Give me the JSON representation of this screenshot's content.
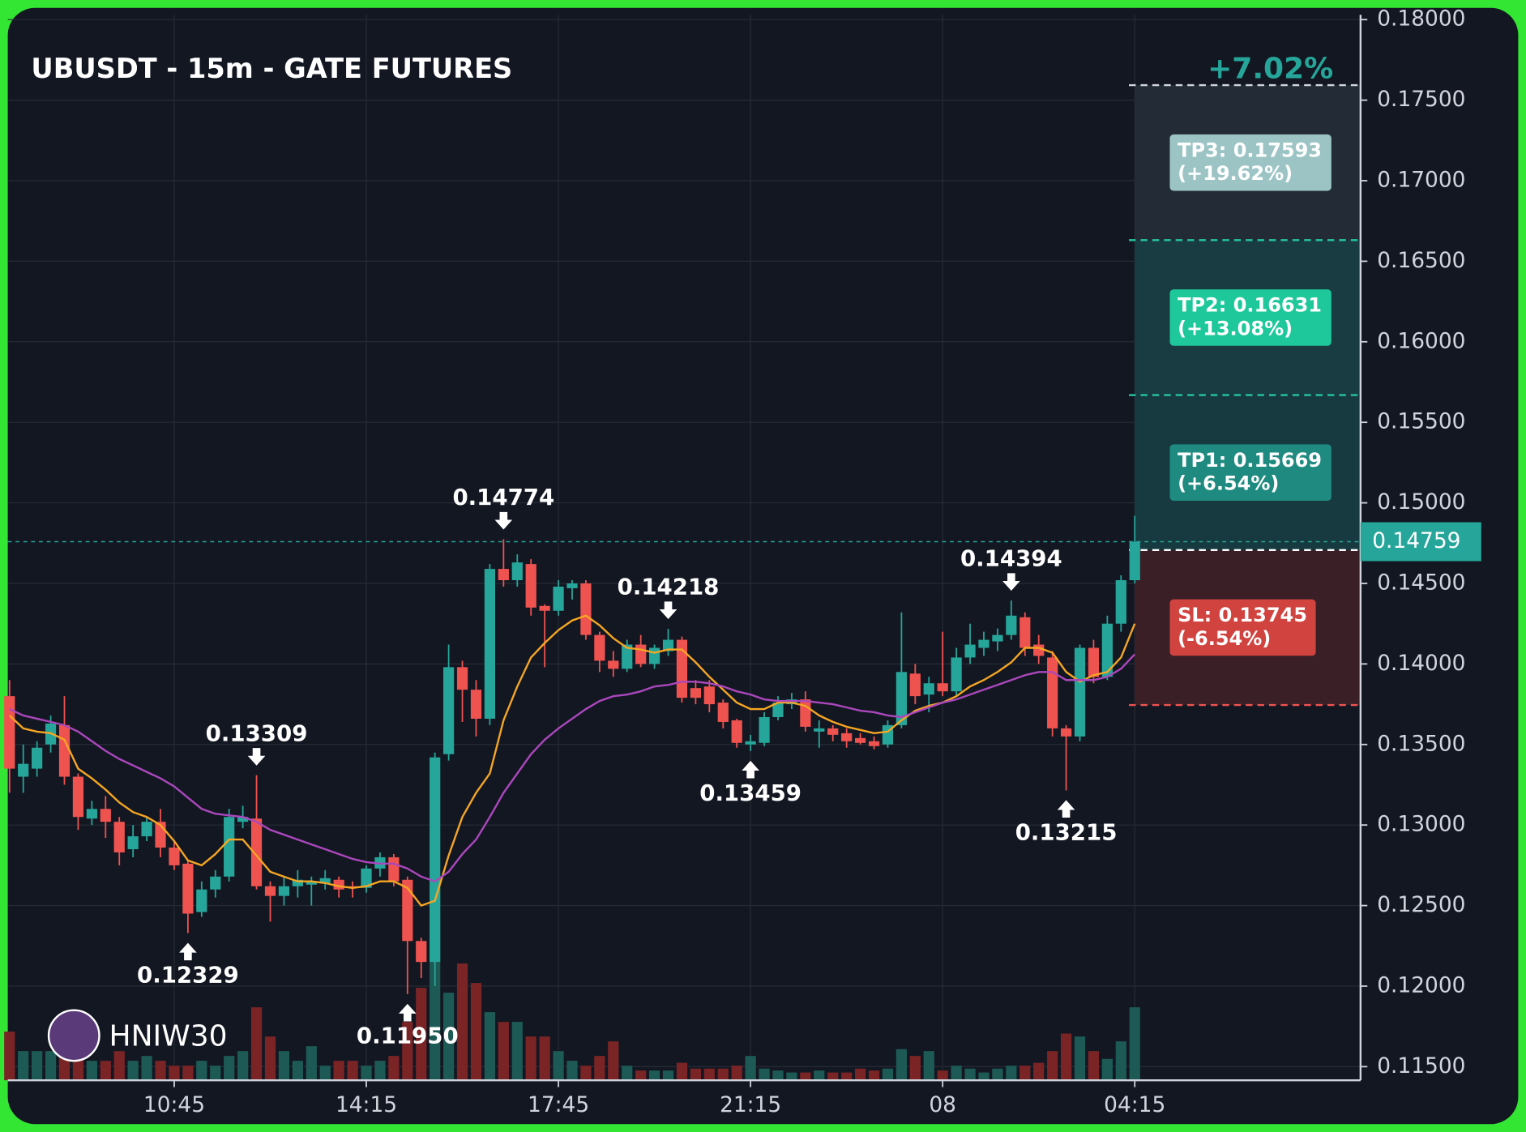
{
  "chart_data": {
    "type": "candlestick",
    "title": "UBUSDT - 15m - GATE FUTURES",
    "watermark": "HNIW30",
    "pnl": "+7.02%",
    "up_color": "#26a69a",
    "down_color": "#ef5350",
    "grid": true,
    "categories": [
      null,
      null,
      null,
      null,
      null,
      null,
      null,
      null,
      null,
      null,
      null,
      null,
      "10:45",
      null,
      null,
      null,
      null,
      null,
      null,
      null,
      null,
      null,
      null,
      null,
      null,
      null,
      "14:15",
      null,
      null,
      null,
      null,
      null,
      null,
      null,
      null,
      null,
      null,
      null,
      null,
      null,
      "17:45",
      null,
      null,
      null,
      null,
      null,
      null,
      null,
      null,
      null,
      null,
      null,
      null,
      null,
      "21:15",
      null,
      null,
      null,
      null,
      null,
      null,
      null,
      null,
      null,
      null,
      null,
      null,
      null,
      "08",
      null,
      null,
      null,
      null,
      null,
      null,
      null,
      null,
      null,
      null,
      null,
      null,
      null,
      "04:15"
    ],
    "open": [
      0.138,
      0.133,
      0.1335,
      0.135,
      0.1362,
      0.133,
      0.1304,
      0.131,
      0.1302,
      0.1285,
      0.1293,
      0.1302,
      0.1286,
      0.1276,
      0.1246,
      0.126,
      0.1268,
      0.1302,
      0.1304,
      0.1262,
      0.1256,
      0.1262,
      0.1263,
      0.1264,
      0.1266,
      0.1262,
      0.1261,
      0.1273,
      0.128,
      0.1266,
      0.1228,
      0.1215,
      0.1344,
      0.1398,
      0.1384,
      0.1366,
      0.1459,
      0.1452,
      0.1462,
      0.1436,
      0.1433,
      0.1447,
      0.145,
      0.1418,
      0.1402,
      0.1397,
      0.1412,
      0.14,
      0.1408,
      0.1415,
      0.1385,
      0.1386,
      0.1376,
      0.1365,
      0.135,
      0.1351,
      0.1367,
      0.1375,
      0.1378,
      0.1358,
      0.136,
      0.1357,
      0.1354,
      0.1352,
      0.135,
      0.1362,
      0.1394,
      0.1381,
      0.1388,
      0.1383,
      0.1404,
      0.141,
      0.1414,
      0.1418,
      0.1429,
      0.1412,
      0.1404,
      0.136,
      0.1355,
      0.141,
      0.1392,
      0.1425,
      0.1452
    ],
    "high": [
      0.139,
      0.135,
      0.1352,
      0.1368,
      0.138,
      0.1332,
      0.1315,
      0.1318,
      0.1305,
      0.13,
      0.1305,
      0.131,
      0.129,
      0.1278,
      0.1265,
      0.1272,
      0.131,
      0.1312,
      0.13309,
      0.1265,
      0.1268,
      0.1272,
      0.1268,
      0.1272,
      0.1268,
      0.1265,
      0.1275,
      0.1283,
      0.1282,
      0.1268,
      0.123,
      0.1345,
      0.1412,
      0.1402,
      0.139,
      0.1462,
      0.14774,
      0.1468,
      0.1465,
      0.1437,
      0.1452,
      0.1452,
      0.1452,
      0.142,
      0.1408,
      0.1415,
      0.1418,
      0.1412,
      0.14218,
      0.1417,
      0.139,
      0.139,
      0.1378,
      0.1366,
      0.1356,
      0.137,
      0.138,
      0.1382,
      0.1383,
      0.1365,
      0.1362,
      0.136,
      0.1357,
      0.1355,
      0.1365,
      0.1432,
      0.14,
      0.1392,
      0.142,
      0.141,
      0.1425,
      0.142,
      0.1422,
      0.14394,
      0.1432,
      0.1418,
      0.1408,
      0.1362,
      0.1412,
      0.1415,
      0.143,
      0.1455,
      0.1492
    ],
    "low": [
      0.132,
      0.132,
      0.133,
      0.1345,
      0.1325,
      0.1297,
      0.13,
      0.1292,
      0.1275,
      0.128,
      0.129,
      0.128,
      0.1272,
      0.12329,
      0.1243,
      0.1255,
      0.1265,
      0.1298,
      0.126,
      0.124,
      0.125,
      0.1255,
      0.125,
      0.126,
      0.1255,
      0.1255,
      0.1258,
      0.1268,
      0.1262,
      0.1195,
      0.1205,
      0.12,
      0.134,
      0.1364,
      0.1355,
      0.1362,
      0.1448,
      0.1448,
      0.143,
      0.1398,
      0.143,
      0.144,
      0.1415,
      0.1395,
      0.1392,
      0.1395,
      0.1398,
      0.1397,
      0.1405,
      0.1376,
      0.1375,
      0.137,
      0.136,
      0.1348,
      0.13459,
      0.1349,
      0.1365,
      0.1372,
      0.1358,
      0.1348,
      0.1352,
      0.1348,
      0.135,
      0.1347,
      0.1348,
      0.136,
      0.1375,
      0.137,
      0.138,
      0.138,
      0.14,
      0.1405,
      0.1408,
      0.1415,
      0.1405,
      0.14,
      0.1355,
      0.13215,
      0.1352,
      0.1388,
      0.139,
      0.142,
      0.145
    ],
    "close": [
      0.1335,
      0.1338,
      0.1348,
      0.1363,
      0.133,
      0.1305,
      0.131,
      0.1302,
      0.1283,
      0.1293,
      0.1302,
      0.1286,
      0.1275,
      0.1245,
      0.126,
      0.1268,
      0.1305,
      0.1305,
      0.1262,
      0.1256,
      0.1262,
      0.1266,
      0.1265,
      0.1267,
      0.126,
      0.1261,
      0.1273,
      0.128,
      0.1265,
      0.1228,
      0.1215,
      0.1342,
      0.1398,
      0.1384,
      0.1366,
      0.1459,
      0.1452,
      0.1463,
      0.1435,
      0.1433,
      0.1448,
      0.145,
      0.1418,
      0.1402,
      0.1397,
      0.1412,
      0.14,
      0.141,
      0.1415,
      0.1379,
      0.1379,
      0.1375,
      0.1364,
      0.1351,
      0.1352,
      0.1367,
      0.1376,
      0.1378,
      0.1361,
      0.136,
      0.1356,
      0.1352,
      0.1351,
      0.1349,
      0.1362,
      0.1395,
      0.138,
      0.1388,
      0.1383,
      0.1404,
      0.1412,
      0.1415,
      0.1418,
      0.143,
      0.141,
      0.1405,
      0.136,
      0.1355,
      0.141,
      0.1392,
      0.1425,
      0.1452,
      0.14759
    ],
    "volume": [
      50,
      30,
      30,
      30,
      40,
      25,
      20,
      20,
      30,
      20,
      25,
      20,
      15,
      15,
      20,
      15,
      25,
      30,
      75,
      45,
      30,
      20,
      35,
      15,
      20,
      20,
      15,
      20,
      25,
      60,
      95,
      200,
      90,
      120,
      100,
      70,
      60,
      60,
      45,
      45,
      30,
      20,
      15,
      25,
      40,
      15,
      10,
      10,
      10,
      18,
      12,
      12,
      12,
      15,
      25,
      12,
      10,
      8,
      8,
      10,
      8,
      8,
      12,
      10,
      12,
      32,
      25,
      30,
      10,
      15,
      12,
      8,
      12,
      15,
      15,
      18,
      30,
      48,
      45,
      30,
      22,
      40,
      75
    ],
    "series": [
      {
        "color": "#f5a623",
        "values": [
          0.1368,
          0.136,
          0.1358,
          0.1357,
          0.1353,
          0.1335,
          0.1329,
          0.1322,
          0.1314,
          0.1308,
          0.1305,
          0.13,
          0.129,
          0.1278,
          0.1275,
          0.1282,
          0.1291,
          0.1291,
          0.1281,
          0.1271,
          0.1268,
          0.1265,
          0.1265,
          0.1264,
          0.1262,
          0.1261,
          0.1262,
          0.1265,
          0.1265,
          0.1261,
          0.125,
          0.1253,
          0.1281,
          0.1305,
          0.132,
          0.1332,
          0.1365,
          0.1386,
          0.1404,
          0.1413,
          0.1421,
          0.1427,
          0.143,
          0.1424,
          0.1416,
          0.141,
          0.1409,
          0.1407,
          0.1409,
          0.1409,
          0.1401,
          0.1392,
          0.1384,
          0.1376,
          0.1372,
          0.1372,
          0.1376,
          0.1376,
          0.1374,
          0.1368,
          0.1364,
          0.1361,
          0.1359,
          0.1357,
          0.1358,
          0.1365,
          0.1371,
          0.1374,
          0.1376,
          0.138,
          0.1386,
          0.139,
          0.1395,
          0.1401,
          0.141,
          0.141,
          0.1407,
          0.1395,
          0.1389,
          0.1393,
          0.1395,
          0.1404,
          0.1425
        ]
      },
      {
        "color": "#ab47bc",
        "values": [
          0.1372,
          0.1368,
          0.1366,
          0.1364,
          0.1362,
          0.1358,
          0.1352,
          0.1346,
          0.1341,
          0.1337,
          0.1333,
          0.1329,
          0.1324,
          0.1317,
          0.131,
          0.1307,
          0.1306,
          0.1305,
          0.1302,
          0.1297,
          0.1294,
          0.1291,
          0.1288,
          0.1285,
          0.1282,
          0.1279,
          0.1277,
          0.1276,
          0.1276,
          0.1273,
          0.1268,
          0.1265,
          0.1271,
          0.1282,
          0.1291,
          0.1305,
          0.132,
          0.1332,
          0.1344,
          0.1353,
          0.136,
          0.1366,
          0.1372,
          0.1377,
          0.138,
          0.1381,
          0.1383,
          0.1386,
          0.1387,
          0.1389,
          0.1389,
          0.1388,
          0.1386,
          0.1383,
          0.1381,
          0.1378,
          0.1377,
          0.1377,
          0.1377,
          0.1376,
          0.1375,
          0.1373,
          0.1371,
          0.137,
          0.1368,
          0.1367,
          0.137,
          0.1373,
          0.1376,
          0.1378,
          0.1381,
          0.1384,
          0.1387,
          0.139,
          0.1393,
          0.1395,
          0.1395,
          0.139,
          0.139,
          0.139,
          0.1392,
          0.1397,
          0.1406
        ]
      }
    ],
    "annotations": [
      {
        "index": 13,
        "value": 0.12329,
        "label": "0.12329",
        "side": "below"
      },
      {
        "index": 18,
        "value": 0.13309,
        "label": "0.13309",
        "side": "above"
      },
      {
        "index": 29,
        "value": 0.1195,
        "label": "0.11950",
        "side": "below"
      },
      {
        "index": 36,
        "value": 0.14774,
        "label": "0.14774",
        "side": "above"
      },
      {
        "index": 48,
        "value": 0.14218,
        "label": "0.14218",
        "side": "above"
      },
      {
        "index": 54,
        "value": 0.13459,
        "label": "0.13459",
        "side": "below"
      },
      {
        "index": 73,
        "value": 0.14394,
        "label": "0.14394",
        "side": "above"
      },
      {
        "index": 77,
        "value": 0.13215,
        "label": "0.13215",
        "side": "below"
      }
    ],
    "last_price": 0.14759,
    "entry": 0.14707,
    "stop": {
      "value": 0.13745,
      "label": "SL: 0.13745",
      "change": "(-6.54%)",
      "color": "#d0433f"
    },
    "targets": [
      {
        "value": 0.15669,
        "label": "TP1: 0.15669",
        "change": "(+6.54%)",
        "color": "#1f8a80"
      },
      {
        "value": 0.16631,
        "label": "TP2: 0.16631",
        "change": "(+13.08%)",
        "color": "#1ec89a"
      },
      {
        "value": 0.17593,
        "label": "TP3: 0.17593",
        "change": "(+19.62%)",
        "color": "#9cc4c4"
      }
    ],
    "ylim": [
      0.115,
      0.18
    ],
    "yticks": [
      {
        "value": 0.115,
        "label": "0.11500"
      },
      {
        "value": 0.12,
        "label": "0.12000"
      },
      {
        "value": 0.125,
        "label": "0.12500"
      },
      {
        "value": 0.13,
        "label": "0.13000"
      },
      {
        "value": 0.135,
        "label": "0.13500"
      },
      {
        "value": 0.14,
        "label": "0.14000"
      },
      {
        "value": 0.145,
        "label": "0.14500"
      },
      {
        "value": 0.15,
        "label": "0.15000"
      },
      {
        "value": 0.155,
        "label": "0.15500"
      },
      {
        "value": 0.16,
        "label": "0.16000"
      },
      {
        "value": 0.165,
        "label": "0.16500"
      },
      {
        "value": 0.17,
        "label": "0.17000"
      },
      {
        "value": 0.175,
        "label": "0.17500"
      },
      {
        "value": 0.18,
        "label": "0.18000"
      }
    ]
  }
}
